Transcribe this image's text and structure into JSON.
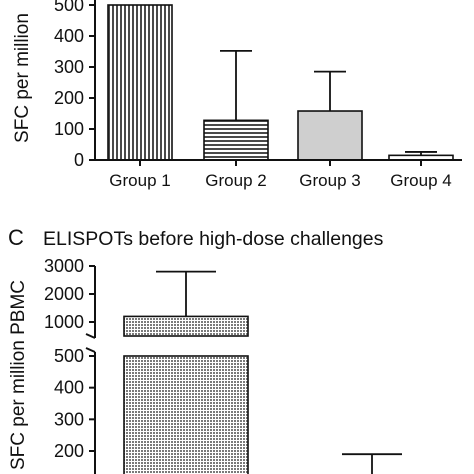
{
  "chart_data": [
    {
      "type": "bar",
      "categories": [
        "Group 1",
        "Group 2",
        "Group 3",
        "Group 4"
      ],
      "values": [
        500,
        128,
        158,
        15
      ],
      "error_upper": [
        500,
        352,
        285,
        26
      ],
      "ylabel": "SFC per million",
      "yticks": [
        0,
        100,
        200,
        300,
        400,
        500
      ],
      "ylim": [
        0,
        520
      ],
      "bar_fills": [
        "vertical-stripes",
        "horizontal-stripes",
        "solid-light-gray",
        "white"
      ]
    },
    {
      "type": "bar",
      "panel_letter": "C",
      "title": "ELISPOTs before high-dose challenges",
      "categories": [
        "",
        ""
      ],
      "values": [
        1200,
        500
      ],
      "error_upper": [
        2800,
        190
      ],
      "ylabel": "SFC per million PBMC",
      "yticks_upper": [
        1000,
        2000,
        3000
      ],
      "yticks_lower": [
        200,
        300,
        400,
        500
      ],
      "axis_break": [
        500,
        700
      ],
      "bar_fills": [
        "crosshatch",
        "none"
      ]
    }
  ]
}
